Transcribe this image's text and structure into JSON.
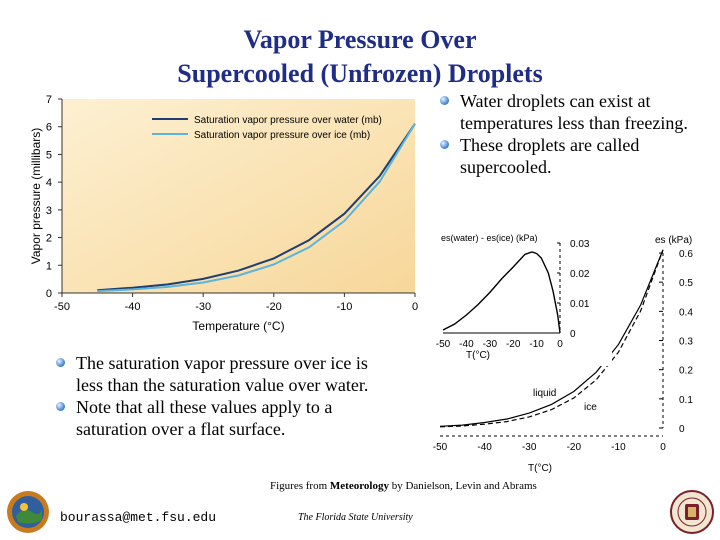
{
  "slide": {
    "title_line1": "Vapor Pressure Over",
    "title_line2": "Supercooled (Unfrozen) Droplets",
    "bullets_right": [
      "Water droplets can exist at temperatures less than freezing.",
      "These droplets are called supercooled."
    ],
    "bullets_left": [
      "The saturation vapor pressure over ice is less than the saturation value over water.",
      "Note that all these values apply to a saturation over a flat surface."
    ],
    "credit_prefix": "Figures from ",
    "credit_book": "Meteorology",
    "credit_suffix": " by Danielson, Levin and Abrams",
    "footer_email": "bourassa@met.fsu.edu",
    "footer_fsu": "The Florida State University",
    "colors": {
      "title": "#1f2d86",
      "water_line": "#1f3d6e",
      "ice_line": "#5ab4dc",
      "panel_bg": "#fbe3b4"
    }
  },
  "chart_data": [
    {
      "type": "line",
      "xlabel": "Temperature (°C)",
      "ylabel": "Vapor pressure (millibars)",
      "xlim": [
        -50,
        0
      ],
      "ylim": [
        0,
        7
      ],
      "x_ticks": [
        "-50",
        "-40",
        "-30",
        "-20",
        "-10",
        "0"
      ],
      "y_ticks": [
        "0",
        "1",
        "2",
        "3",
        "4",
        "5",
        "6",
        "7"
      ],
      "legend_position": "top",
      "series": [
        {
          "name": "Saturation vapor pressure over water (mb)",
          "x": [
            -45,
            -40,
            -35,
            -30,
            -25,
            -20,
            -15,
            -10,
            -5,
            0
          ],
          "y": [
            0.1,
            0.19,
            0.31,
            0.51,
            0.81,
            1.25,
            1.91,
            2.86,
            4.22,
            6.11
          ]
        },
        {
          "name": "Saturation vapor pressure over ice (mb)",
          "x": [
            -45,
            -40,
            -35,
            -30,
            -25,
            -20,
            -15,
            -10,
            -5,
            0
          ],
          "y": [
            0.07,
            0.13,
            0.22,
            0.38,
            0.63,
            1.03,
            1.65,
            2.6,
            4.02,
            6.11
          ]
        }
      ]
    },
    {
      "type": "line",
      "ylabel": "es(water) - es(ice)  (kPa)",
      "xlabel": "T(°C)",
      "xlim": [
        -50,
        0
      ],
      "ylim": [
        0,
        0.03
      ],
      "x_ticks": [
        "-50",
        "-40",
        "-30",
        "-20",
        "-10",
        "0"
      ],
      "y_ticks": [
        "0",
        "0.01",
        "0.02",
        "0.03"
      ],
      "series": [
        {
          "x": [
            -50,
            -45,
            -40,
            -35,
            -30,
            -25,
            -20,
            -15,
            -12,
            -10,
            -8,
            -5,
            -3,
            -1,
            0
          ],
          "y": [
            0.001,
            0.003,
            0.006,
            0.0095,
            0.0135,
            0.018,
            0.022,
            0.0262,
            0.027,
            0.0265,
            0.025,
            0.02,
            0.014,
            0.006,
            0
          ]
        }
      ]
    },
    {
      "type": "line",
      "ylabel": "es  (kPa)",
      "xlabel": "T(°C)",
      "xlim": [
        -50,
        0
      ],
      "ylim": [
        0,
        0.6
      ],
      "x_ticks": [
        "-50",
        "-40",
        "-30",
        "-20",
        "-10",
        "0"
      ],
      "y_ticks": [
        "0",
        "0.1",
        "0.2",
        "0.3",
        "0.4",
        "0.5",
        "0.6"
      ],
      "series": [
        {
          "name": "liquid",
          "x": [
            -50,
            -45,
            -40,
            -35,
            -30,
            -25,
            -20,
            -15,
            -10,
            -5,
            0
          ],
          "y": [
            0.006,
            0.01,
            0.019,
            0.031,
            0.051,
            0.081,
            0.125,
            0.191,
            0.286,
            0.422,
            0.611
          ]
        },
        {
          "name": "ice",
          "x": [
            -50,
            -45,
            -40,
            -35,
            -30,
            -25,
            -20,
            -15,
            -10,
            -5,
            0
          ],
          "y": [
            0.004,
            0.007,
            0.013,
            0.022,
            0.038,
            0.063,
            0.103,
            0.165,
            0.26,
            0.402,
            0.611
          ]
        }
      ]
    }
  ]
}
